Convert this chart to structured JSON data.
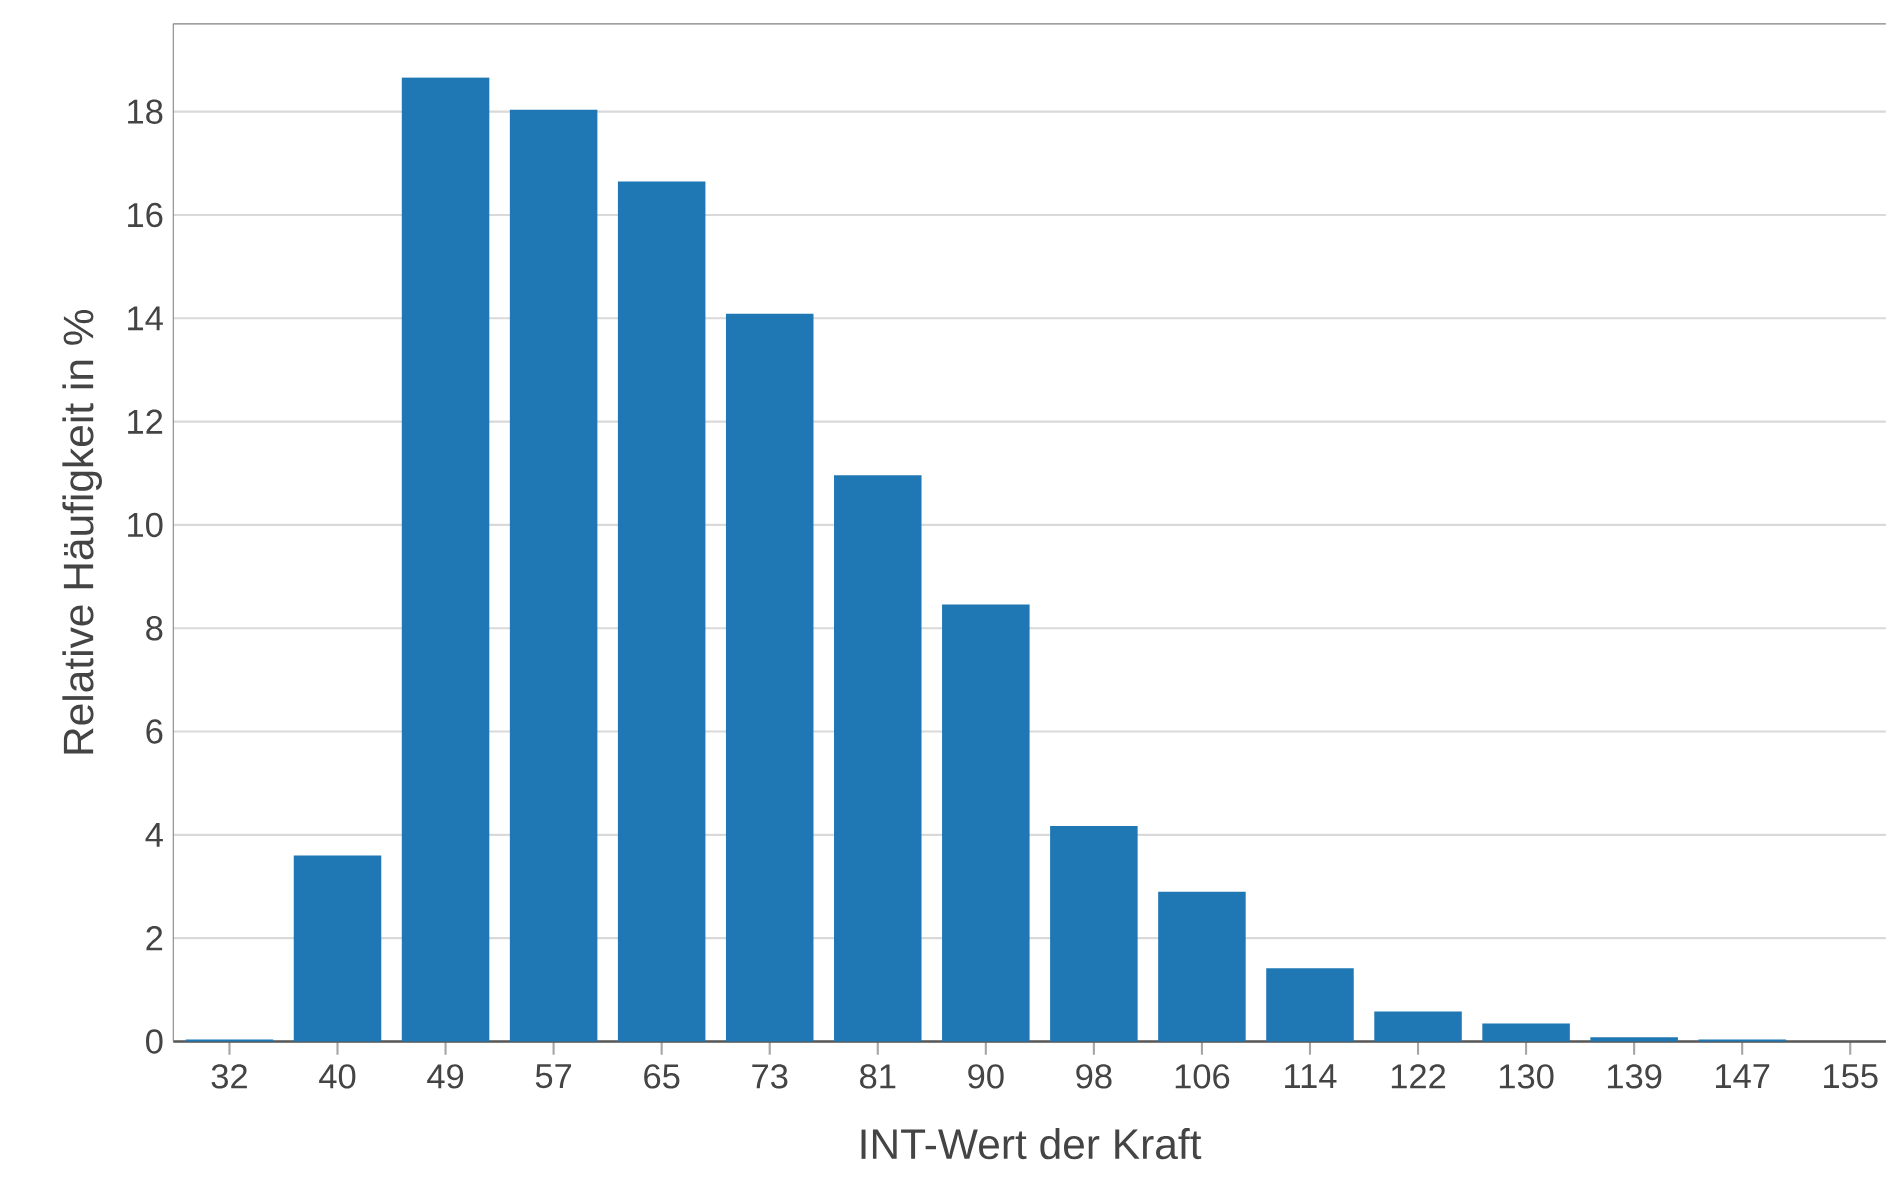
{
  "chart_data": {
    "type": "bar",
    "xlabel": "INT-Wert der Kraft",
    "ylabel": "Relative Häufigkeit in %",
    "categories": [
      "32",
      "40",
      "49",
      "57",
      "65",
      "73",
      "81",
      "90",
      "98",
      "106",
      "114",
      "122",
      "130",
      "139",
      "147",
      "155"
    ],
    "values": [
      0.04,
      3.6,
      18.66,
      18.04,
      16.65,
      14.09,
      10.96,
      8.46,
      4.17,
      2.9,
      1.42,
      0.58,
      0.35,
      0.08,
      0.04,
      0
    ],
    "color": "#1f77b4",
    "ylim": [
      0,
      19.7
    ],
    "yticks": [
      0,
      2,
      4,
      6,
      8,
      10,
      12,
      14,
      16,
      18
    ],
    "grid": "y"
  }
}
